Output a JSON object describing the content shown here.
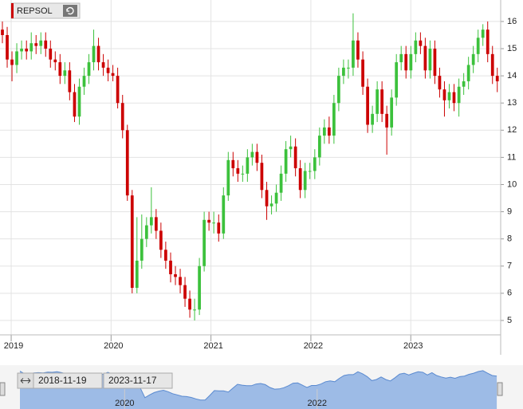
{
  "chart_data": {
    "type": "candlestick",
    "ticker": "REPSOL",
    "range_start": "2018-11-19",
    "range_end": "2023-11-17",
    "up_color": "#3cc13c",
    "down_color": "#cc0000",
    "grid": true,
    "xlim": [
      2018.888,
      2023.9
    ],
    "xticks": [
      2019,
      2020,
      2021,
      2022,
      2023
    ],
    "ylim": [
      4.47,
      16.79
    ],
    "yticks": [
      5,
      6,
      7,
      8,
      9,
      10,
      11,
      12,
      13,
      14,
      15,
      16
    ],
    "navigator": {
      "xlim": [
        2018.755,
        2023.89
      ],
      "xticks": [
        2020,
        2022
      ],
      "color": "#9dbbe6",
      "line_color": "#5a8ad0"
    },
    "x": [
      2018.912,
      2018.96,
      2019.008,
      2019.056,
      2019.104,
      2019.153,
      2019.201,
      2019.249,
      2019.297,
      2019.345,
      2019.393,
      2019.441,
      2019.489,
      2019.537,
      2019.585,
      2019.634,
      2019.682,
      2019.73,
      2019.778,
      2019.826,
      2019.874,
      2019.922,
      2019.97,
      2020.018,
      2020.066,
      2020.115,
      2020.163,
      2020.211,
      2020.259,
      2020.307,
      2020.355,
      2020.403,
      2020.451,
      2020.499,
      2020.547,
      2020.596,
      2020.644,
      2020.692,
      2020.74,
      2020.788,
      2020.836,
      2020.884,
      2020.932,
      2020.98,
      2021.028,
      2021.077,
      2021.125,
      2021.173,
      2021.221,
      2021.269,
      2021.317,
      2021.365,
      2021.413,
      2021.461,
      2021.509,
      2021.558,
      2021.606,
      2021.654,
      2021.702,
      2021.75,
      2021.798,
      2021.846,
      2021.894,
      2021.942,
      2021.99,
      2022.039,
      2022.087,
      2022.135,
      2022.183,
      2022.231,
      2022.279,
      2022.327,
      2022.375,
      2022.423,
      2022.471,
      2022.52,
      2022.568,
      2022.616,
      2022.664,
      2022.712,
      2022.76,
      2022.808,
      2022.856,
      2022.904,
      2022.952,
      2023.001,
      2023.049,
      2023.097,
      2023.145,
      2023.193,
      2023.241,
      2023.289,
      2023.337,
      2023.385,
      2023.433,
      2023.482,
      2023.53,
      2023.578,
      2023.626,
      2023.674,
      2023.722,
      2023.77,
      2023.818,
      2023.866
    ],
    "open": [
      15.7,
      15.5,
      14.6,
      14.4,
      14.9,
      15.0,
      14.9,
      15.2,
      15.1,
      15.3,
      15.0,
      14.6,
      14.5,
      14.0,
      14.2,
      13.4,
      12.5,
      13.6,
      14.0,
      14.5,
      15.1,
      14.5,
      14.3,
      14.1,
      14.0,
      13.0,
      12.0,
      9.6,
      6.2,
      7.2,
      8.0,
      8.5,
      8.8,
      8.3,
      7.6,
      7.2,
      6.7,
      6.6,
      6.3,
      5.8,
      5.4,
      5.4,
      7.0,
      8.7,
      8.6,
      8.6,
      8.2,
      9.6,
      10.9,
      10.6,
      10.4,
      10.4,
      11.0,
      11.2,
      10.8,
      9.8,
      9.2,
      9.3,
      9.7,
      10.4,
      11.3,
      11.4,
      10.6,
      9.8,
      10.5,
      10.5,
      11.0,
      11.8,
      12.1,
      11.8,
      13.0,
      14.0,
      14.3,
      14.3,
      15.3,
      14.6,
      13.6,
      12.2,
      12.6,
      13.5,
      12.6,
      12.1,
      13.2,
      14.5,
      14.8,
      14.2,
      14.8,
      15.3,
      15.1,
      14.2,
      15.0,
      14.0,
      13.5,
      13.1,
      13.4,
      13.0,
      13.6,
      13.8,
      14.4,
      14.8,
      15.4,
      15.7,
      14.8,
      14.0
    ],
    "high": [
      16.0,
      15.8,
      14.9,
      15.2,
      15.3,
      15.3,
      15.6,
      15.5,
      15.6,
      15.6,
      15.3,
      14.9,
      14.8,
      14.5,
      14.5,
      13.7,
      13.9,
      14.3,
      14.8,
      15.7,
      15.4,
      14.8,
      14.6,
      14.4,
      14.3,
      13.3,
      12.2,
      9.8,
      8.8,
      8.9,
      8.8,
      9.9,
      9.1,
      8.6,
      7.9,
      7.5,
      7.0,
      6.9,
      6.6,
      6.1,
      5.8,
      7.3,
      9.0,
      9.0,
      9.0,
      8.9,
      9.9,
      11.2,
      11.2,
      10.9,
      10.7,
      11.3,
      11.5,
      11.5,
      11.1,
      10.1,
      9.6,
      10.0,
      10.7,
      11.6,
      11.8,
      11.7,
      10.9,
      10.8,
      10.8,
      11.3,
      12.1,
      12.4,
      12.5,
      13.3,
      14.3,
      14.6,
      14.6,
      16.3,
      15.6,
      14.9,
      13.9,
      12.9,
      13.8,
      13.8,
      12.9,
      13.5,
      14.8,
      15.1,
      15.1,
      15.1,
      15.6,
      15.6,
      15.4,
      15.3,
      15.3,
      14.3,
      13.8,
      13.7,
      13.7,
      13.9,
      14.1,
      14.7,
      15.1,
      15.7,
      15.9,
      16.0,
      15.1,
      14.3
    ],
    "low": [
      15.2,
      14.3,
      13.8,
      14.1,
      14.6,
      14.6,
      14.6,
      14.8,
      14.8,
      14.7,
      14.3,
      14.2,
      13.7,
      13.7,
      13.1,
      12.3,
      12.2,
      13.3,
      13.7,
      14.2,
      14.2,
      14.0,
      13.8,
      13.8,
      12.8,
      11.7,
      9.4,
      6.0,
      6.0,
      6.9,
      7.7,
      8.2,
      8.0,
      7.3,
      6.9,
      6.4,
      6.3,
      6.0,
      5.5,
      5.1,
      5.0,
      5.2,
      6.8,
      8.3,
      8.2,
      7.9,
      8.0,
      9.4,
      10.3,
      10.1,
      10.1,
      10.1,
      10.7,
      10.5,
      9.5,
      8.7,
      8.9,
      9.0,
      9.4,
      10.1,
      11.0,
      10.3,
      9.5,
      9.5,
      10.2,
      10.2,
      10.7,
      11.5,
      11.5,
      11.5,
      12.7,
      13.7,
      13.9,
      14.0,
      14.3,
      13.3,
      11.9,
      11.9,
      12.3,
      12.3,
      11.1,
      11.8,
      12.9,
      14.2,
      13.9,
      13.9,
      14.5,
      14.8,
      13.9,
      13.9,
      13.7,
      13.2,
      12.5,
      12.8,
      12.7,
      12.5,
      13.3,
      13.5,
      14.1,
      14.5,
      15.1,
      14.5,
      13.7,
      13.4
    ],
    "close": [
      15.5,
      14.6,
      14.4,
      14.9,
      15.0,
      14.9,
      15.2,
      15.1,
      15.3,
      15.0,
      14.6,
      14.5,
      14.0,
      14.2,
      13.4,
      12.5,
      13.6,
      14.0,
      14.5,
      15.1,
      14.5,
      14.3,
      14.1,
      14.0,
      13.0,
      12.0,
      9.6,
      6.2,
      7.2,
      8.0,
      8.5,
      8.8,
      8.3,
      7.6,
      7.2,
      6.7,
      6.6,
      6.3,
      5.8,
      5.4,
      5.4,
      7.0,
      8.7,
      8.6,
      8.6,
      8.2,
      9.6,
      10.9,
      10.6,
      10.4,
      10.4,
      11.0,
      11.2,
      10.8,
      9.8,
      9.2,
      9.3,
      9.7,
      10.4,
      11.3,
      11.4,
      10.6,
      9.8,
      10.5,
      10.5,
      11.0,
      11.8,
      12.1,
      11.8,
      13.0,
      14.0,
      14.3,
      14.3,
      15.3,
      14.6,
      13.6,
      12.2,
      12.6,
      13.5,
      12.6,
      12.1,
      13.2,
      14.5,
      14.8,
      14.2,
      14.8,
      15.3,
      15.1,
      14.2,
      15.0,
      14.0,
      13.5,
      13.1,
      13.4,
      13.0,
      13.6,
      13.8,
      14.4,
      14.8,
      15.4,
      15.7,
      14.8,
      14.0,
      13.8
    ]
  }
}
